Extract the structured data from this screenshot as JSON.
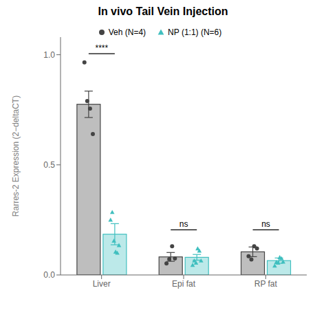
{
  "chart_data": {
    "type": "bar",
    "title": "In vivo Tail Vein Injection",
    "y_label": "Rarres-2 Expression (2−deltaCT)",
    "categories": [
      "Liver",
      "Epi fat",
      "RP fat"
    ],
    "series": [
      {
        "name": "Veh (N=4)",
        "color": "#444444",
        "marker": "circle",
        "values": [
          0.775,
          0.082,
          0.105
        ],
        "errors": [
          0.06,
          0.02,
          0.022
        ],
        "points": [
          [
            0.965,
            0.79,
            0.755,
            0.64
          ],
          [
            0.052,
            0.072,
            0.13,
            0.075
          ],
          [
            0.085,
            0.07,
            0.13,
            0.12
          ]
        ]
      },
      {
        "name": "NP (1:1) (N=6)",
        "color": "#40bfbf",
        "marker": "triangle",
        "values": [
          0.185,
          0.08,
          0.065
        ],
        "errors": [
          0.048,
          0.013,
          0.012
        ],
        "points": [
          [
            0.25,
            0.285,
            0.155,
            0.105,
            0.1,
            0.135
          ],
          [
            0.045,
            0.065,
            0.055,
            0.12,
            0.11,
            0.065
          ],
          [
            0.042,
            0.058,
            0.055,
            0.08,
            0.075,
            0.06
          ]
        ]
      }
    ],
    "annotations": [
      {
        "category": "Liver",
        "text": "****",
        "y": 1.005
      },
      {
        "category": "Epi fat",
        "text": "ns",
        "y": 0.205
      },
      {
        "category": "RP fat",
        "text": "ns",
        "y": 0.205
      }
    ],
    "ylim": [
      0,
      1.08
    ],
    "yticks": [
      {
        "value": 0,
        "label": "0.0"
      },
      0.5,
      {
        "value": 1,
        "label": "1.0"
      }
    ],
    "grid": false,
    "legend": "top"
  }
}
